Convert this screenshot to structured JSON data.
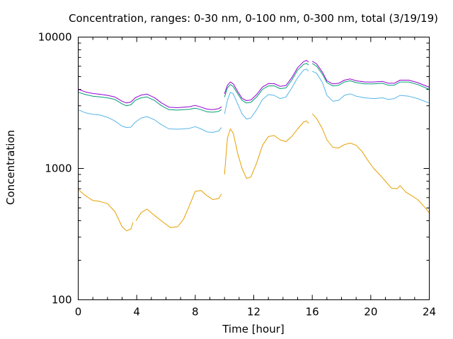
{
  "chart_data": {
    "type": "line",
    "title": "Concentration, ranges: 0-30 nm, 0-100 nm, 0-300 nm, total (3/19/19)",
    "xlabel": "Time [hour]",
    "ylabel": "Concentration",
    "xlim": [
      0,
      24
    ],
    "ylim": [
      100,
      10000
    ],
    "yscale": "log",
    "grid": false,
    "legend": "none",
    "x_ticks": [
      "0",
      "4",
      "8",
      "12",
      "16",
      "20",
      "24"
    ],
    "y_ticks": [
      "100",
      "1000",
      "10000"
    ],
    "series": [
      {
        "color": "#e69f00",
        "segments": [
          [
            [
              0,
              690
            ],
            [
              0.5,
              620
            ],
            [
              1,
              570
            ],
            [
              1.5,
              560
            ],
            [
              2,
              540
            ],
            [
              2.5,
              470
            ],
            [
              3,
              360
            ],
            [
              3.3,
              335
            ],
            [
              3.6,
              345
            ],
            [
              3.75,
              390
            ]
          ],
          [
            [
              3.95,
              400
            ],
            [
              4.3,
              460
            ],
            [
              4.7,
              490
            ],
            [
              5.2,
              440
            ],
            [
              5.8,
              390
            ],
            [
              6.3,
              355
            ],
            [
              6.8,
              360
            ],
            [
              7.2,
              410
            ],
            [
              7.6,
              520
            ],
            [
              8.0,
              670
            ],
            [
              8.4,
              680
            ],
            [
              8.8,
              620
            ],
            [
              9.2,
              580
            ],
            [
              9.6,
              590
            ],
            [
              9.8,
              640
            ]
          ],
          [
            [
              10.0,
              900
            ],
            [
              10.2,
              1700
            ],
            [
              10.4,
              2000
            ],
            [
              10.6,
              1850
            ],
            [
              10.9,
              1300
            ],
            [
              11.2,
              1000
            ],
            [
              11.5,
              840
            ],
            [
              11.8,
              860
            ],
            [
              12.2,
              1100
            ],
            [
              12.6,
              1500
            ],
            [
              13.0,
              1750
            ],
            [
              13.4,
              1780
            ],
            [
              13.8,
              1650
            ],
            [
              14.2,
              1600
            ],
            [
              14.6,
              1750
            ],
            [
              15.0,
              2000
            ],
            [
              15.4,
              2250
            ],
            [
              15.6,
              2300
            ],
            [
              15.75,
              2200
            ]
          ],
          [
            [
              16.0,
              2600
            ],
            [
              16.3,
              2400
            ],
            [
              16.7,
              2000
            ],
            [
              17.0,
              1650
            ],
            [
              17.4,
              1450
            ],
            [
              17.8,
              1430
            ],
            [
              18.2,
              1520
            ],
            [
              18.6,
              1560
            ],
            [
              19.0,
              1500
            ],
            [
              19.4,
              1350
            ],
            [
              19.8,
              1150
            ],
            [
              20.2,
              1000
            ],
            [
              20.6,
              900
            ],
            [
              21.0,
              800
            ],
            [
              21.4,
              710
            ],
            [
              21.8,
              700
            ],
            [
              22.0,
              740
            ],
            [
              22.4,
              660
            ],
            [
              22.8,
              620
            ],
            [
              23.2,
              580
            ],
            [
              23.6,
              520
            ],
            [
              24,
              460
            ]
          ]
        ]
      },
      {
        "color": "#56b4e9",
        "segments": [
          [
            [
              0,
              2800
            ],
            [
              0.5,
              2650
            ],
            [
              1,
              2580
            ],
            [
              1.5,
              2550
            ],
            [
              2,
              2450
            ],
            [
              2.5,
              2300
            ],
            [
              3,
              2100
            ],
            [
              3.3,
              2050
            ],
            [
              3.6,
              2060
            ],
            [
              3.9,
              2250
            ],
            [
              4.3,
              2420
            ],
            [
              4.7,
              2480
            ],
            [
              5.2,
              2350
            ],
            [
              5.7,
              2150
            ],
            [
              6.2,
              2000
            ],
            [
              6.8,
              1990
            ],
            [
              7.2,
              2000
            ],
            [
              7.6,
              2020
            ],
            [
              8.0,
              2080
            ],
            [
              8.4,
              2000
            ],
            [
              8.8,
              1900
            ],
            [
              9.2,
              1880
            ],
            [
              9.6,
              1930
            ],
            [
              9.8,
              2050
            ]
          ],
          [
            [
              10.0,
              2600
            ],
            [
              10.2,
              3300
            ],
            [
              10.4,
              3800
            ],
            [
              10.6,
              3700
            ],
            [
              10.9,
              3100
            ],
            [
              11.2,
              2600
            ],
            [
              11.5,
              2380
            ],
            [
              11.8,
              2420
            ],
            [
              12.2,
              2800
            ],
            [
              12.6,
              3350
            ],
            [
              13.0,
              3650
            ],
            [
              13.4,
              3600
            ],
            [
              13.8,
              3400
            ],
            [
              14.2,
              3500
            ],
            [
              14.6,
              4100
            ],
            [
              15.0,
              4900
            ],
            [
              15.4,
              5600
            ],
            [
              15.6,
              5700
            ],
            [
              15.75,
              5500
            ]
          ],
          [
            [
              16.0,
              5500
            ],
            [
              16.3,
              5300
            ],
            [
              16.7,
              4500
            ],
            [
              17.0,
              3600
            ],
            [
              17.4,
              3250
            ],
            [
              17.8,
              3300
            ],
            [
              18.2,
              3600
            ],
            [
              18.6,
              3700
            ],
            [
              19.0,
              3550
            ],
            [
              19.6,
              3450
            ],
            [
              20.2,
              3400
            ],
            [
              20.8,
              3450
            ],
            [
              21.2,
              3350
            ],
            [
              21.6,
              3400
            ],
            [
              22.0,
              3600
            ],
            [
              22.6,
              3550
            ],
            [
              23.2,
              3400
            ],
            [
              24,
              3150
            ]
          ]
        ]
      },
      {
        "color": "#009e73",
        "segments": [
          [
            [
              0,
              3800
            ],
            [
              0.5,
              3650
            ],
            [
              1,
              3550
            ],
            [
              1.5,
              3500
            ],
            [
              2,
              3450
            ],
            [
              2.5,
              3350
            ],
            [
              3,
              3100
            ],
            [
              3.3,
              3000
            ],
            [
              3.6,
              3050
            ],
            [
              3.9,
              3300
            ],
            [
              4.3,
              3450
            ],
            [
              4.7,
              3500
            ],
            [
              5.2,
              3300
            ],
            [
              5.7,
              3000
            ],
            [
              6.2,
              2800
            ],
            [
              6.8,
              2780
            ],
            [
              7.2,
              2800
            ],
            [
              7.6,
              2820
            ],
            [
              8.0,
              2880
            ],
            [
              8.4,
              2800
            ],
            [
              8.8,
              2700
            ],
            [
              9.2,
              2680
            ],
            [
              9.6,
              2720
            ],
            [
              9.8,
              2800
            ]
          ],
          [
            [
              10.0,
              3500
            ],
            [
              10.2,
              4100
            ],
            [
              10.4,
              4350
            ],
            [
              10.6,
              4200
            ],
            [
              10.9,
              3700
            ],
            [
              11.2,
              3300
            ],
            [
              11.5,
              3150
            ],
            [
              11.8,
              3180
            ],
            [
              12.2,
              3500
            ],
            [
              12.6,
              4000
            ],
            [
              13.0,
              4250
            ],
            [
              13.4,
              4250
            ],
            [
              13.8,
              4050
            ],
            [
              14.2,
              4100
            ],
            [
              14.6,
              4700
            ],
            [
              15.0,
              5600
            ],
            [
              15.4,
              6200
            ],
            [
              15.6,
              6300
            ],
            [
              15.75,
              6150
            ]
          ],
          [
            [
              16.0,
              6300
            ],
            [
              16.3,
              6000
            ],
            [
              16.7,
              5200
            ],
            [
              17.0,
              4500
            ],
            [
              17.4,
              4250
            ],
            [
              17.8,
              4300
            ],
            [
              18.2,
              4550
            ],
            [
              18.6,
              4650
            ],
            [
              19.0,
              4500
            ],
            [
              19.6,
              4400
            ],
            [
              20.2,
              4400
            ],
            [
              20.8,
              4450
            ],
            [
              21.2,
              4300
            ],
            [
              21.6,
              4300
            ],
            [
              22.0,
              4550
            ],
            [
              22.6,
              4550
            ],
            [
              23.2,
              4350
            ],
            [
              24,
              4000
            ]
          ]
        ]
      },
      {
        "color": "#9400d3",
        "segments": [
          [
            [
              0,
              4000
            ],
            [
              0.5,
              3820
            ],
            [
              1,
              3720
            ],
            [
              1.5,
              3670
            ],
            [
              2,
              3600
            ],
            [
              2.5,
              3500
            ],
            [
              3,
              3250
            ],
            [
              3.3,
              3150
            ],
            [
              3.6,
              3200
            ],
            [
              3.9,
              3450
            ],
            [
              4.3,
              3620
            ],
            [
              4.7,
              3680
            ],
            [
              5.2,
              3460
            ],
            [
              5.7,
              3150
            ],
            [
              6.2,
              2930
            ],
            [
              6.8,
              2900
            ],
            [
              7.2,
              2930
            ],
            [
              7.6,
              2950
            ],
            [
              8.0,
              3020
            ],
            [
              8.4,
              2930
            ],
            [
              8.8,
              2830
            ],
            [
              9.2,
              2800
            ],
            [
              9.6,
              2850
            ],
            [
              9.8,
              2950
            ]
          ],
          [
            [
              10.0,
              3700
            ],
            [
              10.2,
              4300
            ],
            [
              10.4,
              4550
            ],
            [
              10.6,
              4400
            ],
            [
              10.9,
              3850
            ],
            [
              11.2,
              3420
            ],
            [
              11.5,
              3280
            ],
            [
              11.8,
              3320
            ],
            [
              12.2,
              3650
            ],
            [
              12.6,
              4170
            ],
            [
              13.0,
              4430
            ],
            [
              13.4,
              4420
            ],
            [
              13.8,
              4220
            ],
            [
              14.2,
              4280
            ],
            [
              14.6,
              4900
            ],
            [
              15.0,
              5850
            ],
            [
              15.4,
              6500
            ],
            [
              15.6,
              6650
            ],
            [
              15.75,
              6450
            ]
          ],
          [
            [
              16.0,
              6550
            ],
            [
              16.3,
              6250
            ],
            [
              16.7,
              5400
            ],
            [
              17.0,
              4650
            ],
            [
              17.4,
              4400
            ],
            [
              17.8,
              4450
            ],
            [
              18.2,
              4700
            ],
            [
              18.6,
              4800
            ],
            [
              19.0,
              4650
            ],
            [
              19.6,
              4550
            ],
            [
              20.2,
              4550
            ],
            [
              20.8,
              4600
            ],
            [
              21.2,
              4450
            ],
            [
              21.6,
              4450
            ],
            [
              22.0,
              4700
            ],
            [
              22.6,
              4700
            ],
            [
              23.2,
              4500
            ],
            [
              24,
              4150
            ]
          ]
        ]
      }
    ]
  }
}
